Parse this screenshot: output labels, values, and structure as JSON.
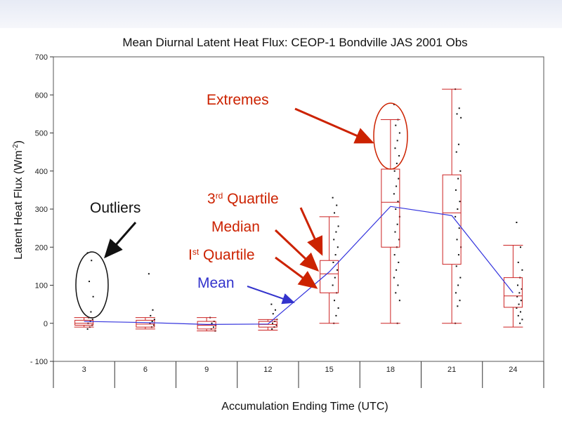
{
  "chart_data": {
    "type": "box",
    "title": "Mean Diurnal Latent Heat Flux: CEOP-1 Bondville JAS 2001 Obs",
    "xlabel": "Accumulation Ending Time (UTC)",
    "ylabel": "Latent Heat Flux (Wm-2)",
    "ylabel_parts": [
      "Latent Heat Flux (Wm",
      "-2",
      ")"
    ],
    "ylim": [
      -100,
      700
    ],
    "yticks": [
      -100,
      0,
      100,
      200,
      300,
      400,
      500,
      600,
      700
    ],
    "ytick_labels": [
      "- 100",
      "0",
      "100",
      "200",
      "300",
      "400",
      "500",
      "600",
      "700"
    ],
    "categories": [
      "3",
      "6",
      "9",
      "12",
      "15",
      "18",
      "21",
      "24"
    ],
    "boxes": [
      {
        "x": "3",
        "whisker_low": -10,
        "q1": -5,
        "median": 0,
        "q3": 8,
        "whisker_high": 15,
        "mean": 5
      },
      {
        "x": "6",
        "whisker_low": -15,
        "q1": -10,
        "median": -2,
        "q3": 8,
        "whisker_high": 15,
        "mean": 2
      },
      {
        "x": "9",
        "whisker_low": -20,
        "q1": -15,
        "median": -5,
        "q3": 5,
        "whisker_high": 15,
        "mean": -3
      },
      {
        "x": "12",
        "whisker_low": -18,
        "q1": -10,
        "median": -3,
        "q3": 5,
        "whisker_high": 10,
        "mean": -2
      },
      {
        "x": "15",
        "whisker_low": 0,
        "q1": 80,
        "median": 130,
        "q3": 165,
        "whisker_high": 280,
        "mean": 135
      },
      {
        "x": "18",
        "whisker_low": 0,
        "q1": 200,
        "median": 318,
        "q3": 405,
        "whisker_high": 535,
        "mean": 307
      },
      {
        "x": "21",
        "whisker_low": 0,
        "q1": 155,
        "median": 290,
        "q3": 390,
        "whisker_high": 615,
        "mean": 283
      },
      {
        "x": "24",
        "whisker_low": -10,
        "q1": 42,
        "median": 72,
        "q3": 120,
        "whisker_high": 205,
        "mean": 80
      }
    ],
    "observations": [
      {
        "x": "3",
        "values": [
          185,
          165,
          110,
          70,
          30,
          15,
          10,
          5,
          0,
          -5,
          -10,
          -15
        ]
      },
      {
        "x": "6",
        "values": [
          130,
          35,
          20,
          10,
          5,
          0,
          -5,
          -10
        ]
      },
      {
        "x": "9",
        "values": [
          15,
          5,
          0,
          -5,
          -10,
          -15,
          -20
        ]
      },
      {
        "x": "12",
        "values": [
          50,
          35,
          25,
          10,
          5,
          0,
          -5,
          -10,
          -15
        ]
      },
      {
        "x": "15",
        "values": [
          330,
          310,
          290,
          255,
          240,
          220,
          200,
          180,
          160,
          140,
          120,
          100,
          80,
          60,
          40,
          20,
          0
        ]
      },
      {
        "x": "18",
        "values": [
          575,
          535,
          520,
          500,
          480,
          460,
          440,
          420,
          400,
          380,
          360,
          340,
          320,
          300,
          280,
          260,
          240,
          220,
          200,
          180,
          160,
          140,
          120,
          100,
          80,
          60,
          0
        ]
      },
      {
        "x": "21",
        "values": [
          615,
          565,
          550,
          540,
          470,
          450,
          400,
          380,
          350,
          320,
          300,
          280,
          250,
          220,
          200,
          180,
          150,
          120,
          100,
          80,
          60,
          45,
          0
        ]
      },
      {
        "x": "24",
        "values": [
          265,
          200,
          160,
          140,
          120,
          100,
          90,
          80,
          70,
          60,
          50,
          40,
          30,
          20,
          10,
          0
        ]
      }
    ],
    "annotations": {
      "extremes": "Extremes",
      "outliers": "Outliers",
      "third_quartile": [
        "3",
        "rd",
        " Quartile"
      ],
      "median": "Median",
      "first_quartile": [
        "I",
        "st",
        " Quartile"
      ],
      "mean": "Mean"
    },
    "colors": {
      "box": "#cc2222",
      "mean_line": "#3333dd",
      "observations": "#111111",
      "annotation_red": "#cc2200",
      "annotation_blue": "#3333cc"
    }
  }
}
